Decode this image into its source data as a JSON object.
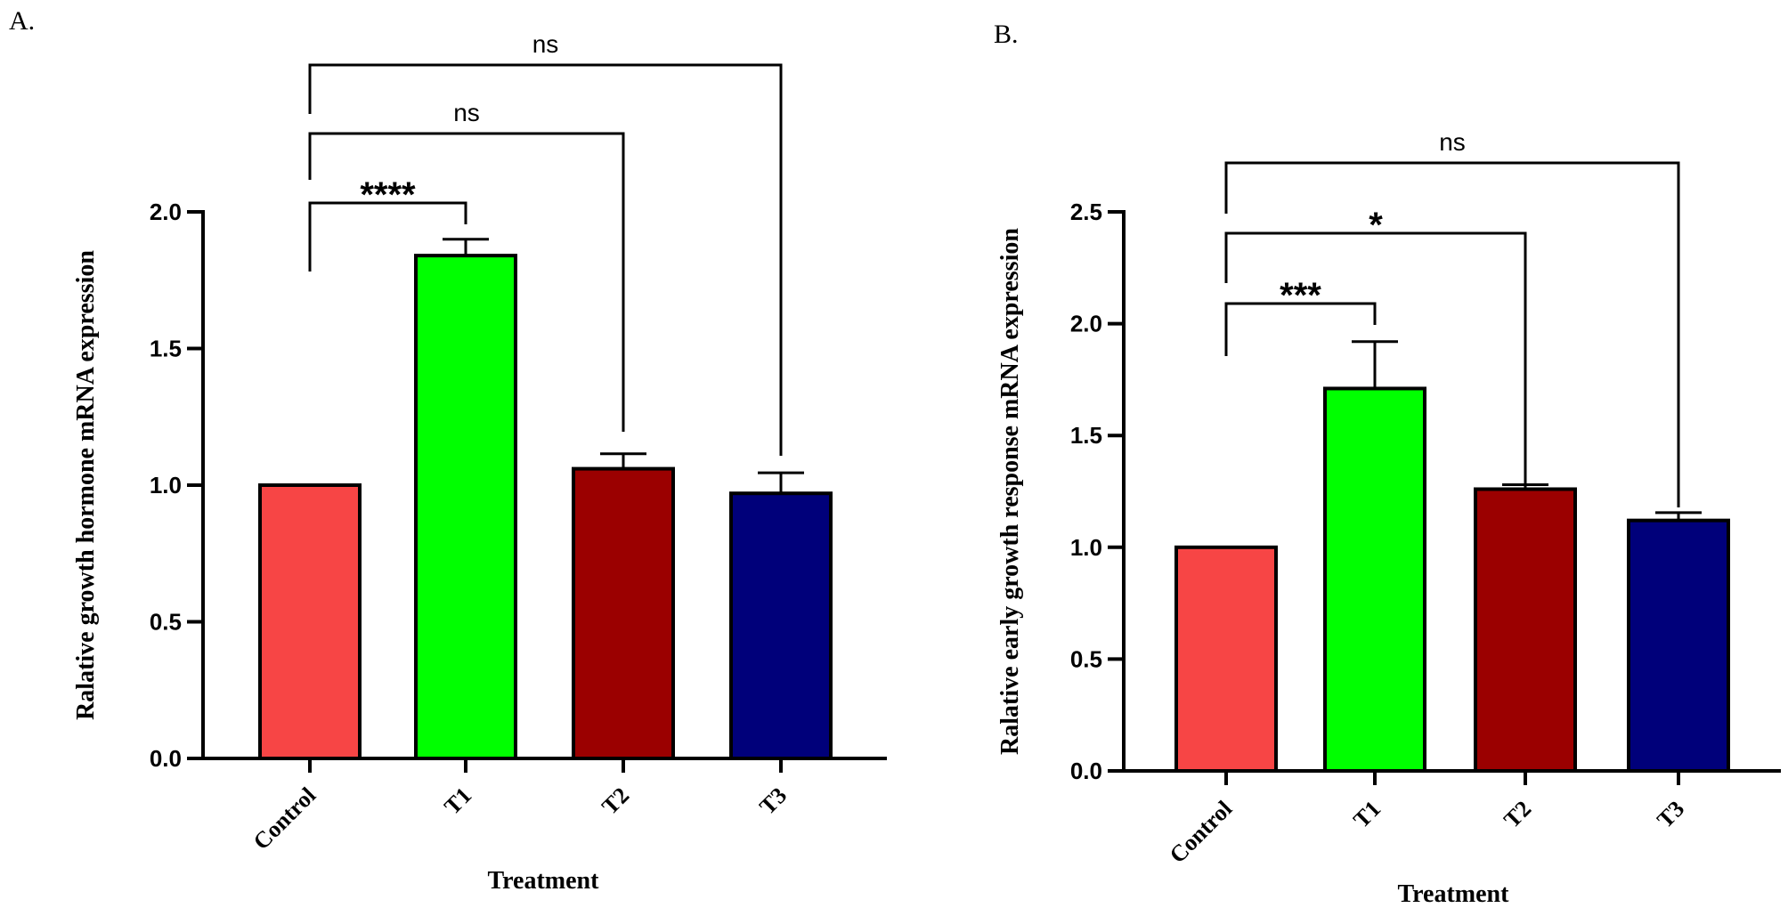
{
  "chart_data": [
    {
      "panel": "A.",
      "type": "bar",
      "categories": [
        "Control",
        "T1",
        "T2",
        "T3"
      ],
      "values": [
        1.0,
        1.84,
        1.06,
        0.97
      ],
      "errors": [
        0.0,
        0.06,
        0.055,
        0.075
      ],
      "colors": [
        "#f74545",
        "#00ff00",
        "#9b0000",
        "#00007a"
      ],
      "ylim": [
        0,
        2.0
      ],
      "yticks": [
        0.0,
        0.5,
        1.0,
        1.5,
        2.0
      ],
      "ytick_labels": [
        "0.0",
        "0.5",
        "1.0",
        "1.5",
        "2.0"
      ],
      "xlabel": "Treatment",
      "ylabel": "Ralative growth hormone  mRNA expression",
      "comparisons": [
        {
          "from": "Control",
          "to": "T1",
          "label": "****"
        },
        {
          "from": "Control",
          "to": "T2",
          "label": "ns"
        },
        {
          "from": "Control",
          "to": "T3",
          "label": "ns"
        }
      ]
    },
    {
      "panel": "B.",
      "type": "bar",
      "categories": [
        "Control",
        "T1",
        "T2",
        "T3"
      ],
      "values": [
        1.0,
        1.71,
        1.26,
        1.12
      ],
      "errors": [
        0.0,
        0.21,
        0.02,
        0.035
      ],
      "colors": [
        "#f74545",
        "#00ff00",
        "#9b0000",
        "#00007a"
      ],
      "ylim": [
        0,
        2.5
      ],
      "yticks": [
        0.0,
        0.5,
        1.0,
        1.5,
        2.0,
        2.5
      ],
      "ytick_labels": [
        "0.0",
        "0.5",
        "1.0",
        "1.5",
        "2.0",
        "2.5"
      ],
      "xlabel": "Treatment",
      "ylabel": "Ralative early growth response  mRNA expression",
      "comparisons": [
        {
          "from": "Control",
          "to": "T1",
          "label": "***"
        },
        {
          "from": "Control",
          "to": "T2",
          "label": "*"
        },
        {
          "from": "Control",
          "to": "T3",
          "label": "ns"
        }
      ]
    }
  ]
}
